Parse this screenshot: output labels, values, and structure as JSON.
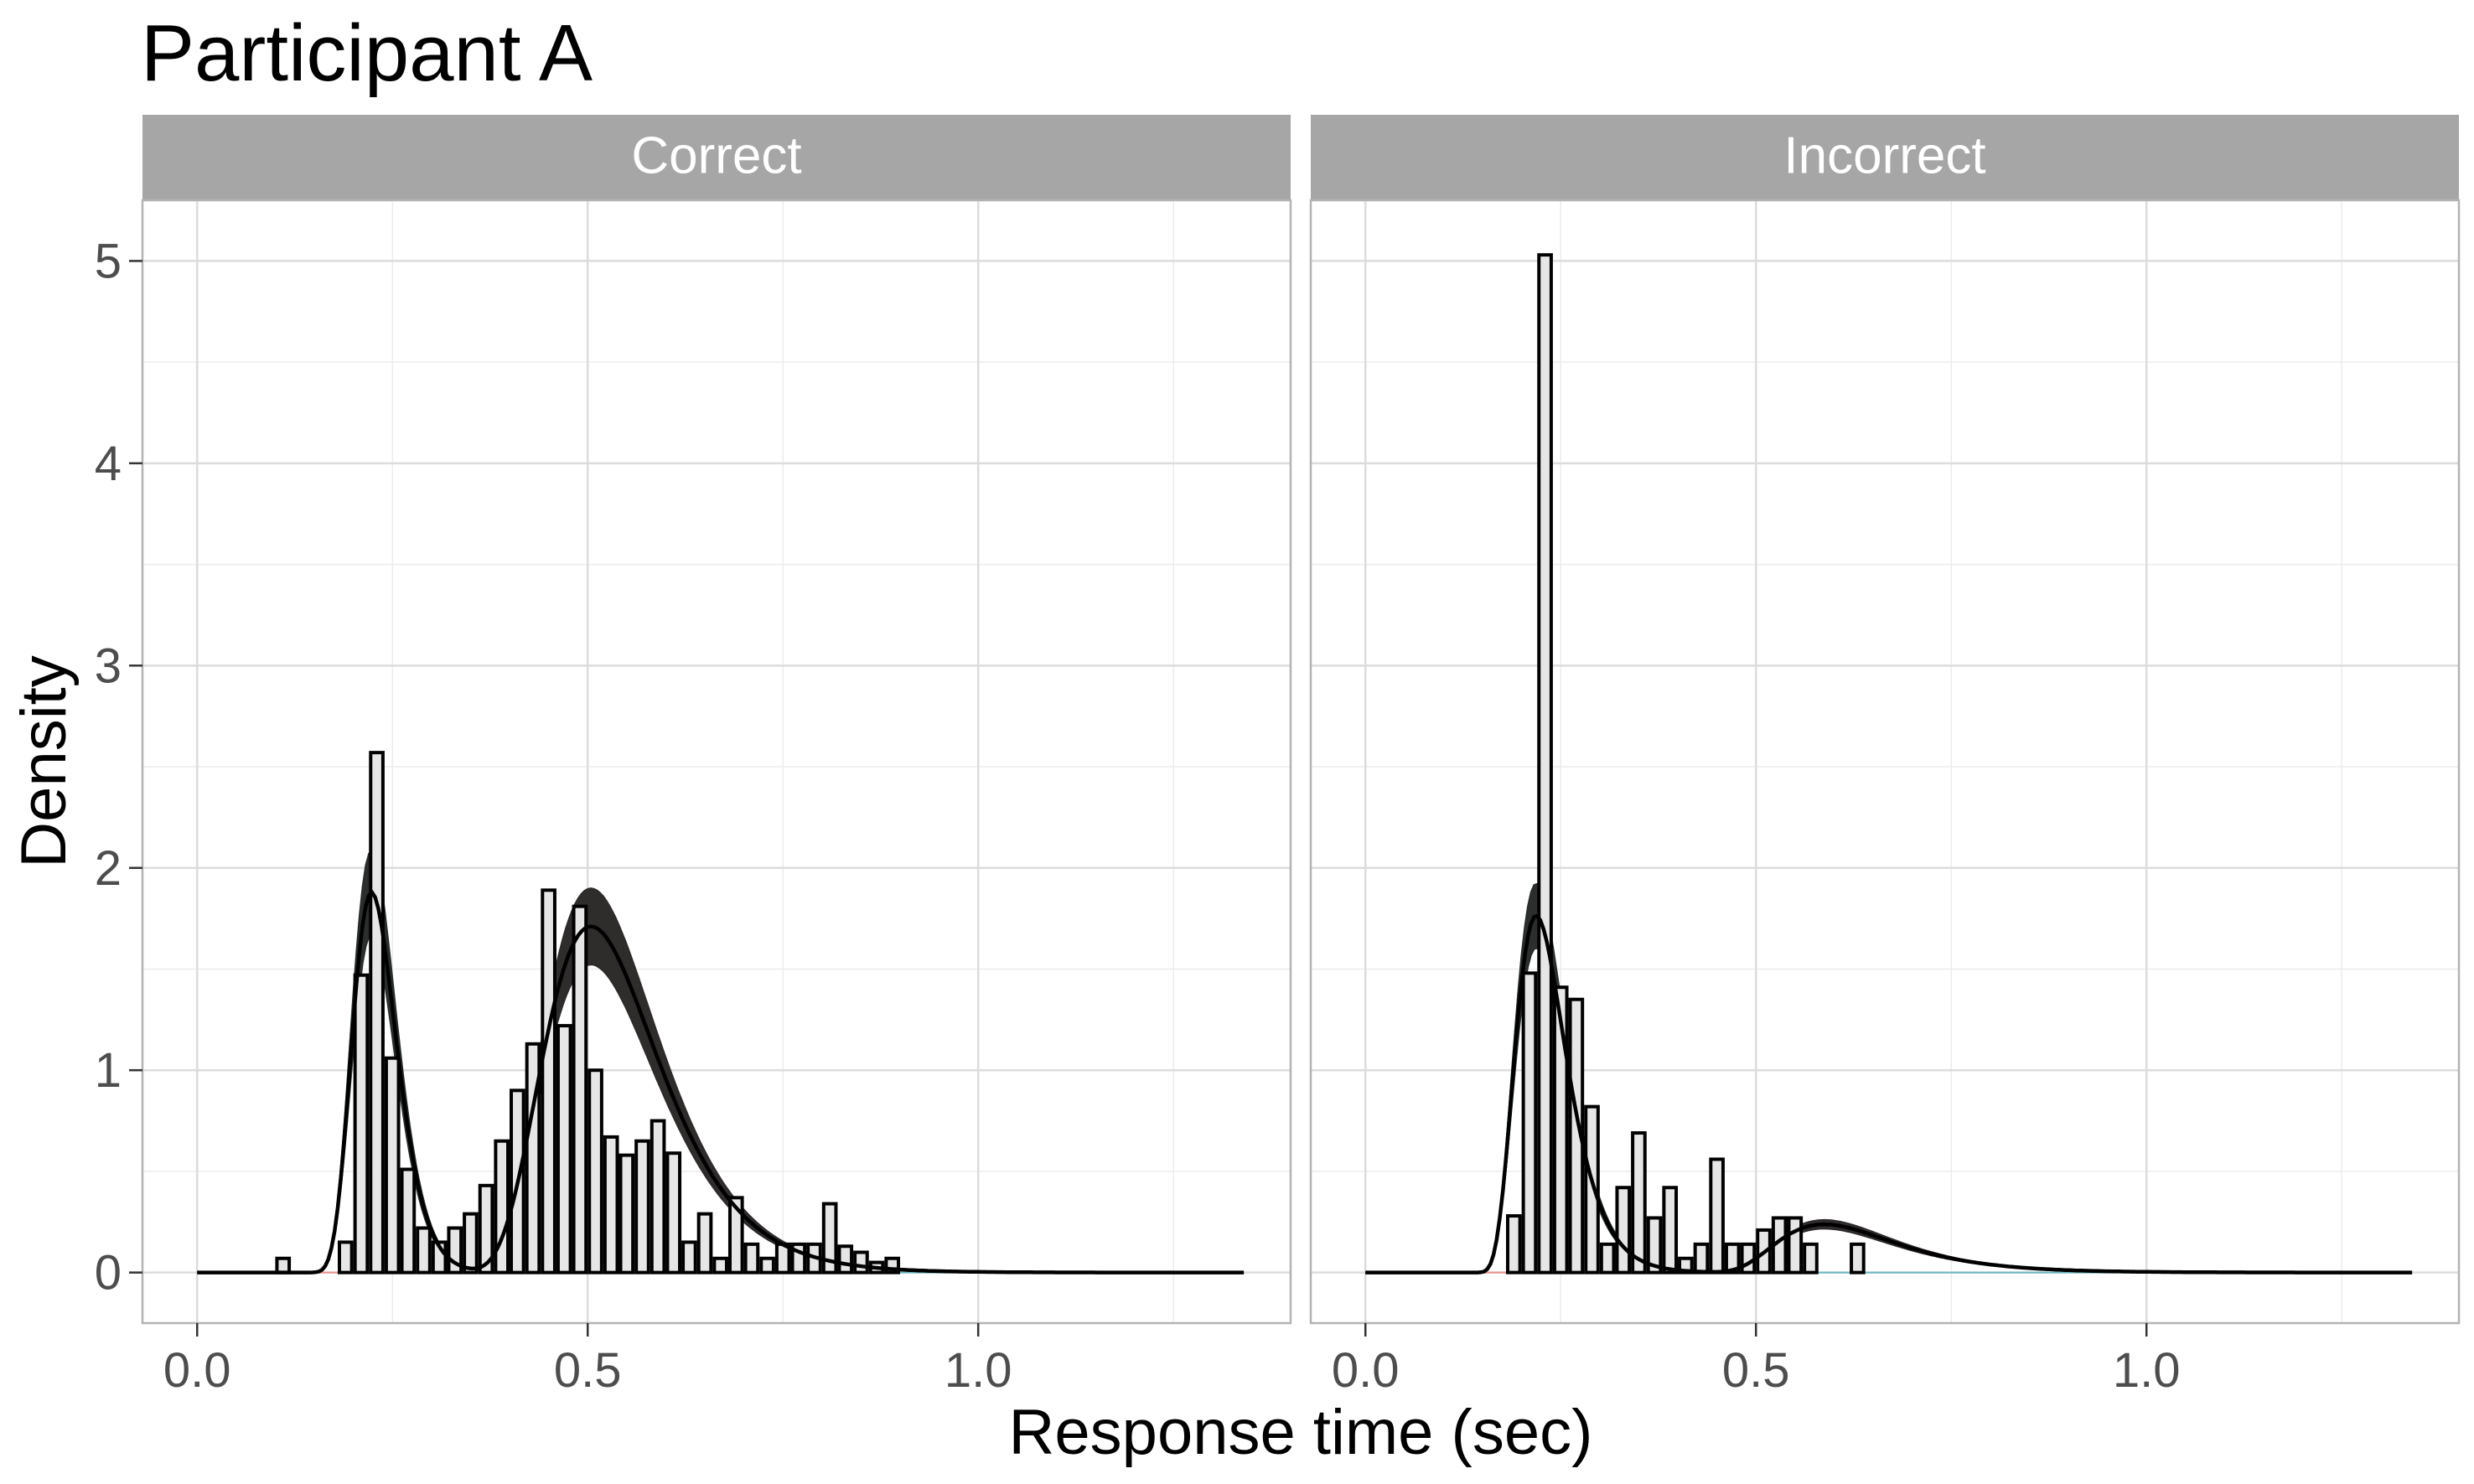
{
  "chart_data": {
    "type": "histogram",
    "title": "Participant A",
    "xlabel": "Response time (sec)",
    "ylabel": "Density",
    "xlim": [
      -0.07,
      1.4
    ],
    "ylim": [
      -0.25,
      5.3
    ],
    "x_ticks": [
      0.0,
      0.5,
      1.0
    ],
    "x_tick_labels": [
      "0.0",
      "0.5",
      "1.0"
    ],
    "x_minor_grid": [
      0.25,
      0.75,
      1.25
    ],
    "y_ticks": [
      0,
      1,
      2,
      3,
      4,
      5
    ],
    "y_tick_labels": [
      "0",
      "1",
      "2",
      "3",
      "4",
      "5"
    ],
    "y_minor_grid": [
      0.5,
      1.5,
      2.5,
      3.5,
      4.5
    ],
    "grid": true,
    "bin_width": 0.02,
    "colors": {
      "strip": "#a6a6a6",
      "bar_fill": "#e6e6e6",
      "bar_outline": "#000000",
      "fast_band": "#1f3b3d",
      "fast_band_edge": "#6bb8c0",
      "slow_band": "#4a2323",
      "slow_band_edge": "#e8908a",
      "total_line": "#000000"
    },
    "panels": [
      {
        "label": "Correct",
        "bins": [
          [
            0.1,
            0.07
          ],
          [
            0.18,
            0.15
          ],
          [
            0.2,
            1.47
          ],
          [
            0.22,
            2.57
          ],
          [
            0.24,
            1.06
          ],
          [
            0.26,
            0.51
          ],
          [
            0.28,
            0.22
          ],
          [
            0.3,
            0.15
          ],
          [
            0.32,
            0.22
          ],
          [
            0.34,
            0.29
          ],
          [
            0.36,
            0.43
          ],
          [
            0.38,
            0.65
          ],
          [
            0.4,
            0.9
          ],
          [
            0.42,
            1.13
          ],
          [
            0.44,
            1.89
          ],
          [
            0.46,
            1.22
          ],
          [
            0.48,
            1.81
          ],
          [
            0.5,
            1.0
          ],
          [
            0.52,
            0.67
          ],
          [
            0.54,
            0.58
          ],
          [
            0.56,
            0.65
          ],
          [
            0.58,
            0.75
          ],
          [
            0.6,
            0.59
          ],
          [
            0.62,
            0.15
          ],
          [
            0.64,
            0.29
          ],
          [
            0.66,
            0.07
          ],
          [
            0.68,
            0.37
          ],
          [
            0.7,
            0.14
          ],
          [
            0.72,
            0.07
          ],
          [
            0.74,
            0.14
          ],
          [
            0.76,
            0.14
          ],
          [
            0.78,
            0.14
          ],
          [
            0.8,
            0.34
          ],
          [
            0.82,
            0.13
          ],
          [
            0.84,
            0.1
          ],
          [
            0.86,
            0.05
          ],
          [
            0.88,
            0.07
          ]
        ],
        "fast_component": {
          "peak": 1.83,
          "mode": 0.23,
          "sigma": 0.23,
          "shift": 0.1
        },
        "slow_component": {
          "peak": 1.62,
          "mode": 0.53,
          "sigma": 0.33,
          "shift": 0.28
        },
        "band_halfwidth": 0.11
      },
      {
        "label": "Incorrect",
        "bins": [
          [
            0.18,
            0.28
          ],
          [
            0.2,
            1.48
          ],
          [
            0.22,
            5.03
          ],
          [
            0.24,
            1.41
          ],
          [
            0.26,
            1.35
          ],
          [
            0.28,
            0.82
          ],
          [
            0.3,
            0.14
          ],
          [
            0.32,
            0.42
          ],
          [
            0.34,
            0.69
          ],
          [
            0.36,
            0.27
          ],
          [
            0.38,
            0.42
          ],
          [
            0.4,
            0.07
          ],
          [
            0.42,
            0.14
          ],
          [
            0.44,
            0.56
          ],
          [
            0.46,
            0.14
          ],
          [
            0.48,
            0.14
          ],
          [
            0.5,
            0.21
          ],
          [
            0.52,
            0.27
          ],
          [
            0.54,
            0.27
          ],
          [
            0.56,
            0.14
          ],
          [
            0.62,
            0.14
          ]
        ],
        "fast_component": {
          "peak": 1.67,
          "mode": 0.23,
          "sigma": 0.33,
          "shift": 0.12
        },
        "slow_component": {
          "peak": 0.22,
          "mode": 0.62,
          "sigma": 0.4,
          "shift": 0.4
        },
        "band_halfwidth": 0.09
      }
    ]
  }
}
